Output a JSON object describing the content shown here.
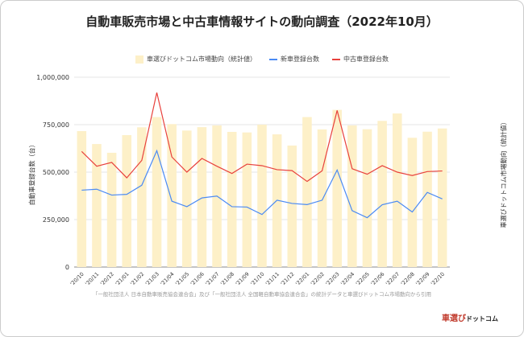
{
  "chart_data": {
    "type": "bar+line",
    "title": "自動車販売市場と中古車情報サイトの動向調査（2022年10月）",
    "ylabel": "自動車登録台数（台）",
    "y2label": "車選びドットコム市場動向（統計値）",
    "ylim": [
      0,
      1000000
    ],
    "yticks": [
      "0",
      "250,000",
      "500,000",
      "750,000",
      "1,000,000"
    ],
    "ytick_values": [
      0,
      250000,
      500000,
      750000,
      1000000
    ],
    "grid": true,
    "legend_position": "top",
    "categories": [
      "'20/10",
      "'20/11",
      "'20/12",
      "'21/01",
      "'21/02",
      "'21/03",
      "'21/04",
      "'21/05",
      "'21/06",
      "'21/07",
      "'21/08",
      "'21/09",
      "'21/10",
      "'21/11",
      "'21/12",
      "'22/01",
      "'22/02",
      "'22/03",
      "'22/04",
      "'22/05",
      "'22/06",
      "'22/07",
      "'22/08",
      "'22/09",
      "'22/10"
    ],
    "series": [
      {
        "name": "車選びドットコム市場動向（統計値）",
        "type": "bar",
        "color": "#fdf0c8",
        "values": [
          716000,
          648000,
          602000,
          695000,
          736000,
          790000,
          753000,
          719000,
          737000,
          746000,
          712000,
          709000,
          750000,
          699000,
          640000,
          790000,
          725000,
          828000,
          746000,
          726000,
          770000,
          809000,
          681000,
          713000,
          730000
        ]
      },
      {
        "name": "新車登録台数",
        "type": "line",
        "color": "#4a8af4",
        "values": [
          405000,
          410000,
          379000,
          383000,
          431000,
          613000,
          347000,
          318000,
          364000,
          374000,
          318000,
          316000,
          277000,
          352000,
          335000,
          329000,
          352000,
          511000,
          297000,
          260000,
          328000,
          347000,
          290000,
          393000,
          359000
        ]
      },
      {
        "name": "中古車登録台数",
        "type": "line",
        "color": "#e8413c",
        "values": [
          609000,
          531000,
          551000,
          470000,
          562000,
          919000,
          580000,
          500000,
          572000,
          531000,
          493000,
          542000,
          534000,
          513000,
          508000,
          451000,
          507000,
          825000,
          518000,
          489000,
          534000,
          500000,
          482000,
          503000,
          506000
        ]
      }
    ]
  },
  "footnote": "「一般社団法人 日本自動車販売協会連合会」及び「一般社団法人 全国軽自動車協会連合会」の統計データと車選びドットコム市場動向から引用",
  "logo": {
    "main": "車選び",
    "sub": "ドットコム"
  }
}
